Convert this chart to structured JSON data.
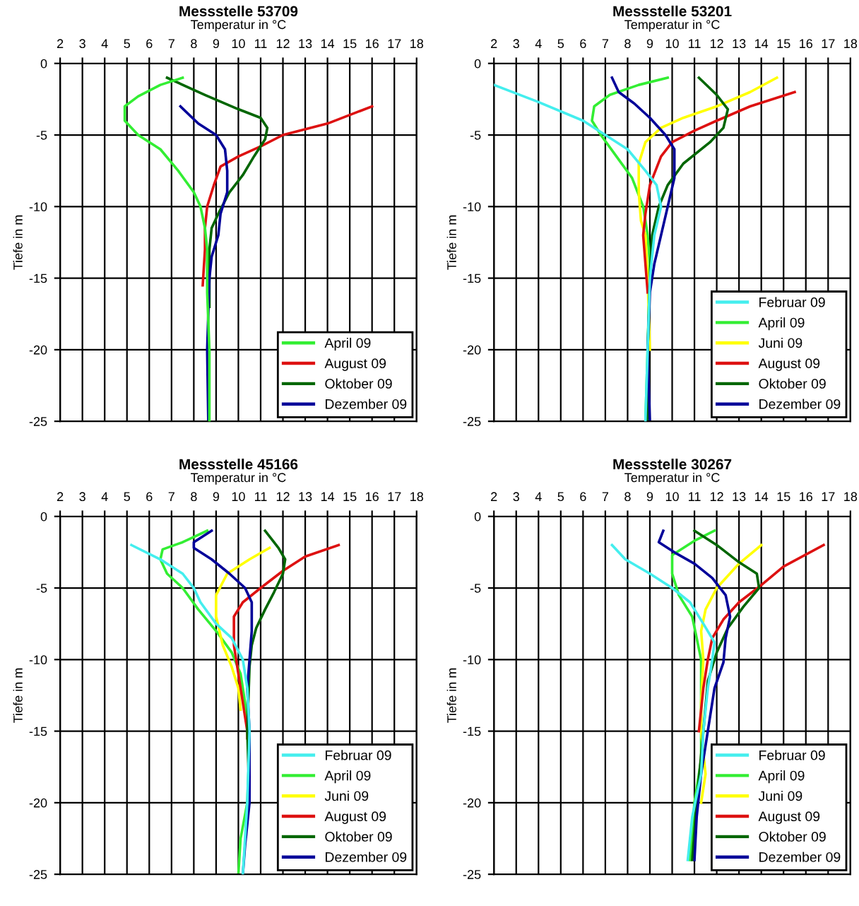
{
  "chart_data": [
    {
      "type": "line",
      "title": "Messstelle 53709",
      "xlabel": "Temperatur in °C",
      "ylabel": "Tiefe in m",
      "xlim": [
        2,
        18
      ],
      "xticks": [
        2,
        3,
        4,
        5,
        6,
        7,
        8,
        9,
        10,
        11,
        12,
        13,
        14,
        15,
        16,
        17,
        18
      ],
      "ylim": [
        -25,
        0
      ],
      "yticks": [
        -25,
        -20,
        -15,
        -10,
        -5,
        0
      ],
      "grid": true,
      "legend": "bottom right",
      "series": [
        {
          "name": "April 09",
          "color": "#33ee33",
          "x": [
            7.5,
            6.5,
            5.5,
            4.9,
            4.9,
            5.5,
            6.5,
            7.3,
            8,
            8.3,
            8.5,
            8.6,
            8.6,
            8.7,
            8.7
          ],
          "values": [
            -1,
            -1.5,
            -2.3,
            -3,
            -4,
            -5,
            -6,
            -7.5,
            -9,
            -10,
            -11.5,
            -13,
            -16,
            -20,
            -25
          ]
        },
        {
          "name": "August 09",
          "color": "#dd1111",
          "x": [
            16,
            14,
            12,
            11,
            10,
            9.2,
            8.9,
            8.6,
            8.5,
            8.5,
            8.4
          ],
          "values": [
            -3,
            -4.2,
            -5,
            -5.8,
            -6.5,
            -7.2,
            -8.5,
            -10,
            -11.5,
            -13,
            -15.5
          ]
        },
        {
          "name": "Oktober 09",
          "color": "#006600",
          "x": [
            6.8,
            8.5,
            10,
            11,
            11.3,
            11.2,
            10.7,
            10.2,
            9.6,
            9.1,
            8.8,
            8.7,
            8.7
          ],
          "values": [
            -1,
            -2.2,
            -3.2,
            -3.8,
            -4.5,
            -5.3,
            -6.5,
            -7.8,
            -9,
            -10.5,
            -11.5,
            -13,
            -17
          ]
        },
        {
          "name": "Dezember 09",
          "color": "#000099",
          "x": [
            7.4,
            8.2,
            9,
            9.4,
            9.5,
            9.5,
            9.2,
            9.1,
            8.8,
            8.7,
            8.6,
            8.65
          ],
          "values": [
            -3,
            -4.2,
            -5,
            -6,
            -7.5,
            -9,
            -10.5,
            -12,
            -13.5,
            -15,
            -20,
            -25
          ]
        }
      ]
    },
    {
      "type": "line",
      "title": "Messstelle 53201",
      "xlabel": "Temperatur in °C",
      "ylabel": "Tiefe in m",
      "xlim": [
        2,
        18
      ],
      "xticks": [
        2,
        3,
        4,
        5,
        6,
        7,
        8,
        9,
        10,
        11,
        12,
        13,
        14,
        15,
        16,
        17,
        18
      ],
      "ylim": [
        -25,
        0
      ],
      "yticks": [
        -25,
        -20,
        -15,
        -10,
        -5,
        0
      ],
      "grid": true,
      "legend": "bottom right",
      "series": [
        {
          "name": "Februar 09",
          "color": "#44eeee",
          "x": [
            2,
            4,
            6,
            7,
            8,
            8.8,
            9.3,
            9.5,
            9.2,
            9,
            8.9,
            8.8
          ],
          "values": [
            -1.5,
            -2.7,
            -4,
            -5,
            -6,
            -7.5,
            -8.5,
            -10,
            -12,
            -15,
            -20,
            -25
          ]
        },
        {
          "name": "April 09",
          "color": "#33ee33",
          "x": [
            9.8,
            8.5,
            7.2,
            6.5,
            6.4,
            6.8,
            7.5,
            8.2,
            8.7,
            8.9,
            9,
            8.9,
            8.8
          ],
          "values": [
            -1,
            -1.5,
            -2.2,
            -3,
            -4,
            -5,
            -6.5,
            -8,
            -10,
            -12,
            -14,
            -20,
            -25
          ]
        },
        {
          "name": "Juni 09",
          "color": "#ffff00",
          "x": [
            14.7,
            13.5,
            12,
            10.5,
            9.5,
            8.8,
            8.5,
            8.5,
            8.6,
            8.8,
            8.9,
            9
          ],
          "values": [
            -1,
            -2,
            -3,
            -3.8,
            -4.5,
            -5.5,
            -7,
            -9,
            -11,
            -12,
            -15,
            -20
          ]
        },
        {
          "name": "August 09",
          "color": "#dd1111",
          "x": [
            15.5,
            13.5,
            12,
            11,
            10,
            9.5,
            9,
            8.8,
            8.7,
            8.8,
            8.9
          ],
          "values": [
            -2,
            -3,
            -4,
            -4.7,
            -5.5,
            -6.5,
            -8.5,
            -10.5,
            -12,
            -14,
            -16
          ]
        },
        {
          "name": "Oktober 09",
          "color": "#006600",
          "x": [
            11.2,
            12,
            12.5,
            12.3,
            11.7,
            10.5,
            9.8,
            9.4,
            9.1,
            9,
            8.9,
            8.9
          ],
          "values": [
            -1,
            -2.2,
            -3.2,
            -4.5,
            -5.5,
            -7,
            -8.5,
            -10,
            -12,
            -15,
            -20,
            -25
          ]
        },
        {
          "name": "Dezember 09",
          "color": "#000099",
          "x": [
            7.3,
            7.6,
            8.3,
            9,
            9.7,
            10.1,
            10.1,
            9.8,
            9.5,
            9.2,
            9,
            8.9,
            9
          ],
          "values": [
            -1,
            -2,
            -2.8,
            -3.8,
            -5,
            -6,
            -8,
            -10,
            -12,
            -14,
            -16,
            -20,
            -25
          ]
        }
      ]
    },
    {
      "type": "line",
      "title": "Messstelle 45166",
      "xlabel": "Temperatur in °C",
      "ylabel": "Tiefe in m",
      "xlim": [
        2,
        18
      ],
      "xticks": [
        2,
        3,
        4,
        5,
        6,
        7,
        8,
        9,
        10,
        11,
        12,
        13,
        14,
        15,
        16,
        17,
        18
      ],
      "ylim": [
        -25,
        0
      ],
      "yticks": [
        -25,
        -20,
        -15,
        -10,
        -5,
        0
      ],
      "grid": true,
      "legend": "bottom right",
      "series": [
        {
          "name": "Februar 09",
          "color": "#44eeee",
          "x": [
            5.2,
            6.5,
            7.5,
            8,
            8.3,
            9,
            9.7,
            10.2,
            10.4,
            10.5,
            10.4,
            10.2
          ],
          "values": [
            -2,
            -3,
            -4,
            -5,
            -6,
            -7.5,
            -8.5,
            -10,
            -12,
            -15,
            -20,
            -25
          ]
        },
        {
          "name": "April 09",
          "color": "#33ee33",
          "x": [
            8.6,
            7.5,
            6.6,
            6.5,
            6.8,
            7.5,
            8.2,
            9,
            9.7,
            10.1,
            10.3,
            10.5,
            10.4,
            10.1,
            10
          ],
          "values": [
            -1,
            -1.8,
            -2.3,
            -3,
            -4,
            -5,
            -6.5,
            -8,
            -9.5,
            -11,
            -13,
            -16,
            -20,
            -22.5,
            -25
          ]
        },
        {
          "name": "Juni 09",
          "color": "#ffff00",
          "x": [
            11.4,
            10.5,
            9.5,
            9,
            9,
            9.3,
            9.7,
            10,
            10.1
          ],
          "values": [
            -2.2,
            -3,
            -4,
            -5.5,
            -7,
            -9,
            -10.5,
            -12,
            -13.5
          ]
        },
        {
          "name": "August 09",
          "color": "#dd1111",
          "x": [
            14.5,
            13,
            12,
            11,
            10.2,
            9.8,
            9.8,
            10,
            10.2,
            10.4,
            10.4
          ],
          "values": [
            -2,
            -2.8,
            -3.8,
            -5,
            -6,
            -7,
            -9,
            -11,
            -13,
            -15,
            -15.5
          ]
        },
        {
          "name": "Oktober 09",
          "color": "#006600",
          "x": [
            11.2,
            11.8,
            12.1,
            12,
            11.6,
            11.2,
            10.8,
            10.6,
            10.5,
            10.4,
            10.5
          ],
          "values": [
            -1,
            -2.2,
            -3,
            -4,
            -5.3,
            -6.5,
            -7.8,
            -9,
            -10.5,
            -15,
            -20
          ]
        },
        {
          "name": "Dezember 09",
          "color": "#000099",
          "x": [
            8.8,
            8,
            8,
            8.8,
            9.6,
            10.3,
            10.6,
            10.6,
            10.5,
            10.4,
            10.5,
            10.5,
            10.3,
            10.2
          ],
          "values": [
            -1,
            -1.8,
            -2.2,
            -3,
            -4,
            -5,
            -6,
            -8,
            -10,
            -12,
            -15,
            -20,
            -23,
            -25
          ]
        }
      ]
    },
    {
      "type": "line",
      "title": "Messstelle 30267",
      "xlabel": "Temperatur in °C",
      "ylabel": "Tiefe in m",
      "xlim": [
        2,
        18
      ],
      "xticks": [
        2,
        3,
        4,
        5,
        6,
        7,
        8,
        9,
        10,
        11,
        12,
        13,
        14,
        15,
        16,
        17,
        18
      ],
      "ylim": [
        -25,
        0
      ],
      "yticks": [
        -25,
        -20,
        -15,
        -10,
        -5,
        0
      ],
      "grid": true,
      "legend": "bottom right",
      "series": [
        {
          "name": "Februar 09",
          "color": "#44eeee",
          "x": [
            7.3,
            7.9,
            9,
            10,
            10.8,
            11.4,
            11.9,
            11.8,
            11.6,
            11.4,
            11.3,
            10.9,
            10.7
          ],
          "values": [
            -2,
            -3,
            -4,
            -5,
            -6,
            -7.5,
            -8.8,
            -10,
            -12,
            -15,
            -18,
            -21,
            -24
          ]
        },
        {
          "name": "April 09",
          "color": "#33ee33",
          "x": [
            11.9,
            11,
            10,
            10,
            10.3,
            10.9,
            11.1,
            11.3,
            11.3,
            11.3,
            11,
            10.8
          ],
          "values": [
            -1,
            -1.7,
            -2.7,
            -4,
            -5.5,
            -7,
            -8.5,
            -10,
            -13,
            -17,
            -20,
            -24
          ]
        },
        {
          "name": "Juni 09",
          "color": "#ffff00",
          "x": [
            14,
            13,
            12,
            11.5,
            11.3,
            11.4,
            11.3,
            11.3,
            11.5,
            11.3
          ],
          "values": [
            -2,
            -3.3,
            -5,
            -6.5,
            -8,
            -10,
            -13,
            -15,
            -18,
            -20
          ]
        },
        {
          "name": "August 09",
          "color": "#dd1111",
          "x": [
            16.8,
            15,
            14,
            13,
            12.3,
            11.8,
            11.6,
            11.4,
            11.2
          ],
          "values": [
            -2,
            -3.5,
            -4.8,
            -6,
            -7.2,
            -8.5,
            -10,
            -12,
            -15
          ]
        },
        {
          "name": "Oktober 09",
          "color": "#006600",
          "x": [
            11,
            12,
            13,
            13.8,
            13.9,
            13.2,
            12.5,
            12,
            11.6,
            11.4,
            11.1,
            10.9
          ],
          "values": [
            -1,
            -2,
            -3.2,
            -4,
            -5,
            -6.3,
            -7.8,
            -9.5,
            -11.5,
            -15,
            -20,
            -24
          ]
        },
        {
          "name": "Dezember 09",
          "color": "#000099",
          "x": [
            9.6,
            9.4,
            10.2,
            11,
            11.8,
            12.4,
            12.6,
            12.4,
            12.3,
            11.9,
            11.6,
            11.3,
            11.1,
            11
          ],
          "values": [
            -1,
            -1.8,
            -2.6,
            -3.3,
            -4.3,
            -5.5,
            -7,
            -8.5,
            -10.2,
            -12,
            -15,
            -18,
            -21,
            -24
          ]
        }
      ]
    }
  ]
}
